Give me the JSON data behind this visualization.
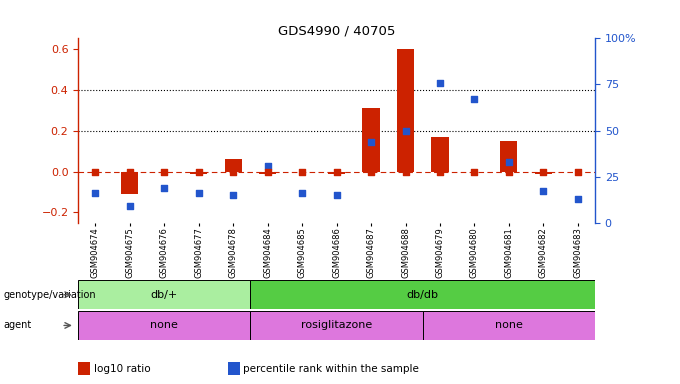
{
  "title": "GDS4990 / 40705",
  "samples": [
    "GSM904674",
    "GSM904675",
    "GSM904676",
    "GSM904677",
    "GSM904678",
    "GSM904684",
    "GSM904685",
    "GSM904686",
    "GSM904687",
    "GSM904688",
    "GSM904679",
    "GSM904680",
    "GSM904681",
    "GSM904682",
    "GSM904683"
  ],
  "log10_ratio": [
    0.0,
    -0.11,
    0.0,
    -0.01,
    0.06,
    -0.01,
    0.0,
    -0.01,
    0.31,
    0.6,
    0.17,
    0.0,
    0.15,
    -0.01,
    0.0
  ],
  "percentile": [
    16,
    9,
    19,
    16,
    15,
    31,
    16,
    15,
    44,
    50,
    76,
    67,
    33,
    17,
    13
  ],
  "bar_color": "#cc2200",
  "dot_color": "#2255cc",
  "ylim_left": [
    -0.25,
    0.65
  ],
  "ylim_right": [
    0,
    100
  ],
  "yticks_left": [
    -0.2,
    0.0,
    0.2,
    0.4,
    0.6
  ],
  "yticks_right": [
    0,
    25,
    50,
    75,
    100
  ],
  "hlines": [
    0.2,
    0.4
  ],
  "genotype_groups": [
    {
      "label": "db/+",
      "start": 0,
      "end": 5,
      "color": "#aaeea0"
    },
    {
      "label": "db/db",
      "start": 5,
      "end": 15,
      "color": "#55cc44"
    }
  ],
  "agent_groups": [
    {
      "label": "none",
      "start": 0,
      "end": 5,
      "color": "#dd77dd"
    },
    {
      "label": "rosiglitazone",
      "start": 5,
      "end": 10,
      "color": "#dd77dd"
    },
    {
      "label": "none",
      "start": 10,
      "end": 15,
      "color": "#dd77dd"
    }
  ],
  "legend_items": [
    {
      "color": "#cc2200",
      "label": "log10 ratio"
    },
    {
      "color": "#2255cc",
      "label": "percentile rank within the sample"
    }
  ],
  "background_color": "#ffffff"
}
